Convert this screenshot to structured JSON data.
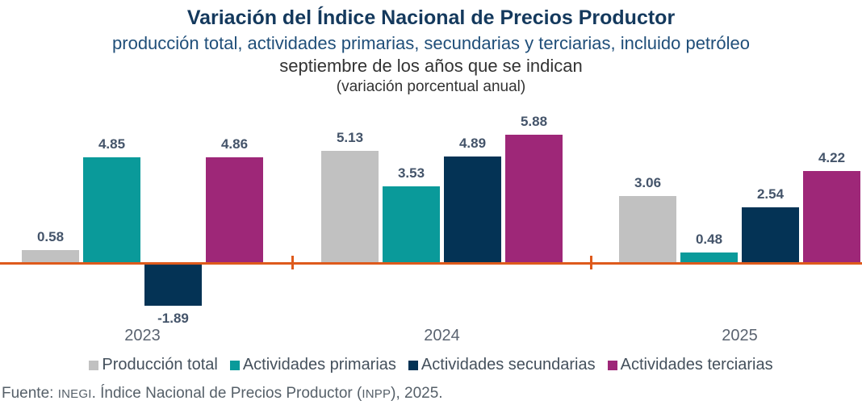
{
  "header": {
    "title": "Variación del Índice Nacional de Precios Productor",
    "subtitle": "producción total, actividades primarias, secundarias y terciarias, incluido petróleo",
    "period_note": "septiembre de los años que se indican",
    "unit_note": "(variación porcentual anual)"
  },
  "chart_data": {
    "type": "bar",
    "title": "Variación del Índice Nacional de Precios Productor",
    "subtitle": "producción total, actividades primarias, secundarias y terciarias, incluido petróleo",
    "period_note": "septiembre de los años que se indican",
    "unit_note": "(variación porcentual anual)",
    "categories": [
      "2023",
      "2024",
      "2025"
    ],
    "series": [
      {
        "name": "Producción total",
        "color": "#C1C1C1",
        "values": [
          0.58,
          5.13,
          3.06
        ]
      },
      {
        "name": "Actividades primarias",
        "color": "#0A9A9A",
        "values": [
          4.85,
          3.53,
          0.48
        ]
      },
      {
        "name": "Actividades secundarias",
        "color": "#043355",
        "values": [
          -1.89,
          4.89,
          2.54
        ]
      },
      {
        "name": "Actividades terciarias",
        "color": "#9E2778",
        "values": [
          4.86,
          5.88,
          4.22
        ]
      }
    ],
    "value_labels": true,
    "grid": false,
    "legend_position": "bottom",
    "ylim": [
      -2.5,
      6.5
    ],
    "axis_color": "#DE5A1C",
    "value_label_color": "#44546A",
    "year_label_color": "#5A6370"
  },
  "source": {
    "prefix": "Fuente: ",
    "institution": "INEGI",
    "middle": ". Índice Nacional de Precios Productor (",
    "acronym": "INPP",
    "suffix": "), 2025."
  }
}
